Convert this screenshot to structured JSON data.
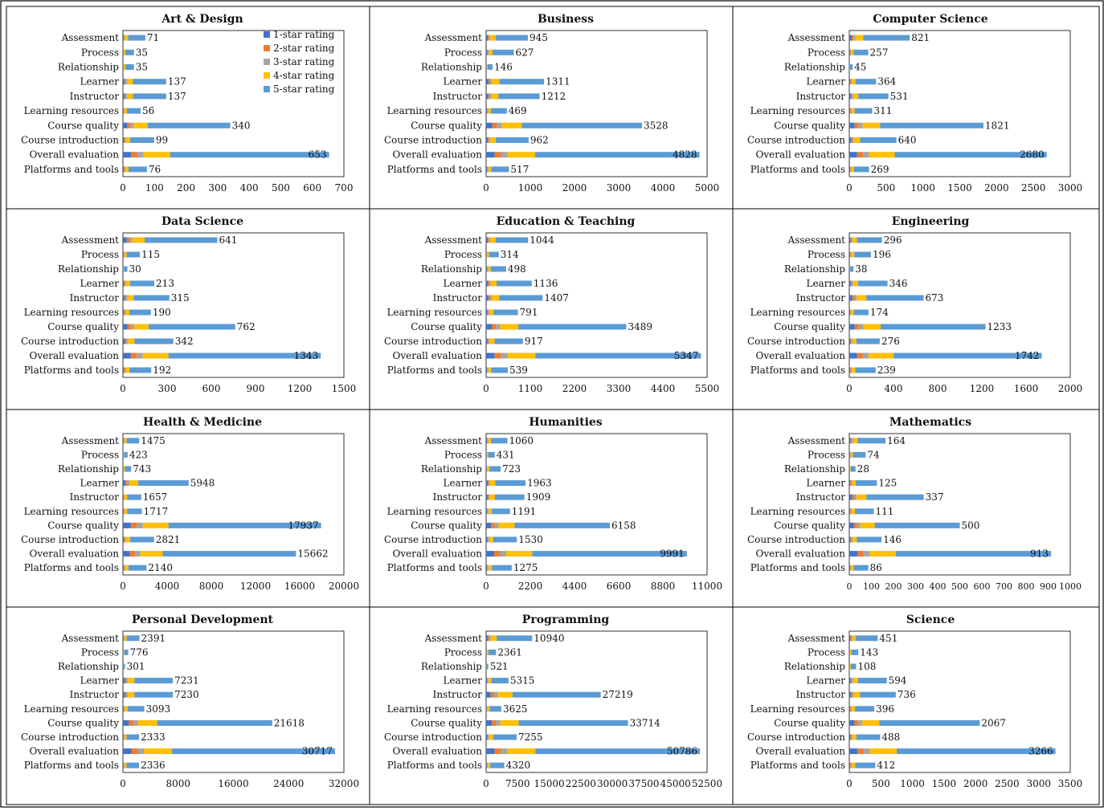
{
  "colors": {
    "star1": "#4472C4",
    "star2": "#ED7D31",
    "star3": "#A5A5A5",
    "star4": "#FFC000",
    "star5": "#5B9BD5"
  },
  "legend": [
    "1-star rating",
    "2-star rating",
    "3-star rating",
    "4-star rating",
    "5-star rating"
  ],
  "chart_data": [
    {
      "type": "bar",
      "orientation": "horizontal",
      "stacked": true,
      "title": "Art & Design",
      "categories": [
        "Assessment",
        "Process",
        "Relationship",
        "Learner",
        "Instructor",
        "Learning resources",
        "Course quality",
        "Course introduction",
        "Overall evaluation",
        "Platforms and tools"
      ],
      "totals": [
        71,
        35,
        35,
        137,
        137,
        56,
        340,
        99,
        653,
        76
      ],
      "xlim": [
        0,
        700
      ],
      "xticks": [
        "0",
        "100",
        "200",
        "300",
        "400",
        "500",
        "600",
        "700"
      ],
      "legend": "right"
    },
    {
      "type": "bar",
      "orientation": "horizontal",
      "stacked": true,
      "title": "Business",
      "categories": [
        "Assessment",
        "Process",
        "Relationship",
        "Learner",
        "Instructor",
        "Learning resources",
        "Course quality",
        "Course introduction",
        "Overall evaluation",
        "Platforms and tools"
      ],
      "totals": [
        945,
        627,
        146,
        1311,
        1212,
        469,
        3528,
        962,
        4828,
        517
      ],
      "xlim": [
        0,
        5000
      ],
      "xticks": [
        "0",
        "1000",
        "2000",
        "3000",
        "4000",
        "5000"
      ]
    },
    {
      "type": "bar",
      "orientation": "horizontal",
      "stacked": true,
      "title": "Computer Science",
      "categories": [
        "Assessment",
        "Process",
        "Relationship",
        "Learner",
        "Instructor",
        "Learning resources",
        "Course quality",
        "Course introduction",
        "Overall evaluation",
        "Platforms and tools"
      ],
      "totals": [
        821,
        257,
        45,
        364,
        531,
        311,
        1821,
        640,
        2680,
        269
      ],
      "xlim": [
        0,
        3000
      ],
      "xticks": [
        "0",
        "500",
        "1000",
        "1500",
        "2000",
        "2500",
        "3000"
      ]
    },
    {
      "type": "bar",
      "orientation": "horizontal",
      "stacked": true,
      "title": "Data Science",
      "categories": [
        "Assessment",
        "Process",
        "Relationship",
        "Learner",
        "Instructor",
        "Learning resources",
        "Course quality",
        "Course introduction",
        "Overall evaluation",
        "Platforms and tools"
      ],
      "totals": [
        641,
        115,
        30,
        213,
        315,
        190,
        762,
        342,
        1343,
        192
      ],
      "xlim": [
        0,
        1500
      ],
      "xticks": [
        "0",
        "300",
        "600",
        "900",
        "1200",
        "1500"
      ]
    },
    {
      "type": "bar",
      "orientation": "horizontal",
      "stacked": true,
      "title": "Education & Teaching",
      "categories": [
        "Assessment",
        "Process",
        "Relationship",
        "Learner",
        "Instructor",
        "Learning resources",
        "Course quality",
        "Course introduction",
        "Overall evaluation",
        "Platforms and tools"
      ],
      "totals": [
        1044,
        314,
        498,
        1136,
        1407,
        791,
        3489,
        917,
        5347,
        539
      ],
      "xlim": [
        0,
        5500
      ],
      "xticks": [
        "0",
        "1100",
        "2200",
        "3300",
        "4400",
        "5500"
      ]
    },
    {
      "type": "bar",
      "orientation": "horizontal",
      "stacked": true,
      "title": "Engineering",
      "categories": [
        "Assessment",
        "Process",
        "Relationship",
        "Learner",
        "Instructor",
        "Learning resources",
        "Course quality",
        "Course introduction",
        "Overall evaluation",
        "Platforms and tools"
      ],
      "totals": [
        296,
        196,
        38,
        346,
        673,
        174,
        1233,
        276,
        1742,
        239
      ],
      "xlim": [
        0,
        2000
      ],
      "xticks": [
        "0",
        "400",
        "800",
        "1200",
        "1600",
        "2000"
      ]
    },
    {
      "type": "bar",
      "orientation": "horizontal",
      "stacked": true,
      "title": "Health & Medicine",
      "categories": [
        "Assessment",
        "Process",
        "Relationship",
        "Learner",
        "Instructor",
        "Learning resources",
        "Course quality",
        "Course introduction",
        "Overall evaluation",
        "Platforms and tools"
      ],
      "totals": [
        1475,
        423,
        743,
        5948,
        1657,
        1717,
        17937,
        2821,
        15662,
        2140
      ],
      "xlim": [
        0,
        20000
      ],
      "xticks": [
        "0",
        "4000",
        "8000",
        "12000",
        "16000",
        "20000"
      ]
    },
    {
      "type": "bar",
      "orientation": "horizontal",
      "stacked": true,
      "title": "Humanities",
      "categories": [
        "Assessment",
        "Process",
        "Relationship",
        "Learner",
        "Instructor",
        "Learning resources",
        "Course quality",
        "Course introduction",
        "Overall evaluation",
        "Platforms and tools"
      ],
      "totals": [
        1060,
        431,
        723,
        1963,
        1909,
        1191,
        6158,
        1530,
        9991,
        1275
      ],
      "xlim": [
        0,
        11000
      ],
      "xticks": [
        "0",
        "2200",
        "4400",
        "6600",
        "8800",
        "11000"
      ]
    },
    {
      "type": "bar",
      "orientation": "horizontal",
      "stacked": true,
      "title": "Mathematics",
      "categories": [
        "Assessment",
        "Process",
        "Relationship",
        "Learner",
        "Instructor",
        "Learning resources",
        "Course quality",
        "Course introduction",
        "Overall evaluation",
        "Platforms and tools"
      ],
      "totals": [
        164,
        74,
        28,
        125,
        337,
        111,
        500,
        146,
        913,
        86
      ],
      "xlim": [
        0,
        1000
      ],
      "xticks": [
        "0",
        "100",
        "200",
        "300",
        "400",
        "500",
        "600",
        "700",
        "800",
        "900",
        "1000"
      ]
    },
    {
      "type": "bar",
      "orientation": "horizontal",
      "stacked": true,
      "title": "Personal Development",
      "categories": [
        "Assessment",
        "Process",
        "Relationship",
        "Learner",
        "Instructor",
        "Learning resources",
        "Course quality",
        "Course introduction",
        "Overall evaluation",
        "Platforms and tools"
      ],
      "totals": [
        2391,
        776,
        301,
        7231,
        7230,
        3093,
        21618,
        2333,
        30717,
        2336
      ],
      "xlim": [
        0,
        32000
      ],
      "xticks": [
        "0",
        "8000",
        "16000",
        "24000",
        "32000"
      ]
    },
    {
      "type": "bar",
      "orientation": "horizontal",
      "stacked": true,
      "title": "Programming",
      "categories": [
        "Assessment",
        "Process",
        "Relationship",
        "Learner",
        "Instructor",
        "Learning resources",
        "Course quality",
        "Course introduction",
        "Overall evaluation",
        "Platforms and tools"
      ],
      "totals": [
        10940,
        2361,
        521,
        5315,
        27219,
        3625,
        33714,
        7255,
        50786,
        4320
      ],
      "xlim": [
        0,
        52500
      ],
      "xticks": [
        "0",
        "7500",
        "15000",
        "22500",
        "30000",
        "37500",
        "45000",
        "52500"
      ]
    },
    {
      "type": "bar",
      "orientation": "horizontal",
      "stacked": true,
      "title": "Science",
      "categories": [
        "Assessment",
        "Process",
        "Relationship",
        "Learner",
        "Instructor",
        "Learning resources",
        "Course quality",
        "Course introduction",
        "Overall evaluation",
        "Platforms and tools"
      ],
      "totals": [
        451,
        143,
        108,
        594,
        736,
        396,
        2067,
        488,
        3266,
        412
      ],
      "xlim": [
        0,
        3500
      ],
      "xticks": [
        "0",
        "500",
        "1000",
        "1500",
        "2000",
        "2500",
        "3000",
        "3500"
      ]
    }
  ]
}
